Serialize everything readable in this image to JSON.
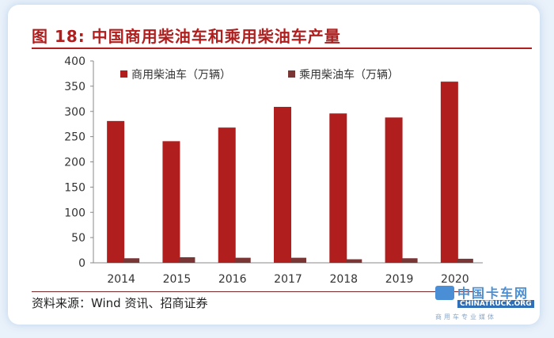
{
  "title": "图 18:  中国商用柴油车和乘用柴油车产量",
  "source": "资料来源：Wind 资讯、招商证券",
  "colors": {
    "accent": "#b01e1e",
    "commercial": "#b01e1e",
    "passenger": "#7a3535"
  },
  "logo": {
    "cn": "中国卡车网",
    "en": "CHINATRUCK.ORG",
    "tagline": "商用车专业媒体"
  },
  "chart_data": {
    "type": "bar",
    "categories": [
      "2014",
      "2015",
      "2016",
      "2017",
      "2018",
      "2019",
      "2020"
    ],
    "series": [
      {
        "name": "商用柴油车（万辆）",
        "values": [
          281,
          241,
          268,
          309,
          296,
          288,
          359
        ]
      },
      {
        "name": "乘用柴油车（万辆）",
        "values": [
          9,
          11,
          10,
          10,
          7,
          9,
          8
        ]
      }
    ],
    "y_ticks": [
      0,
      50,
      100,
      150,
      200,
      250,
      300,
      350,
      400
    ],
    "ylim": [
      0,
      400
    ],
    "grid": false,
    "legend_position": "top"
  }
}
